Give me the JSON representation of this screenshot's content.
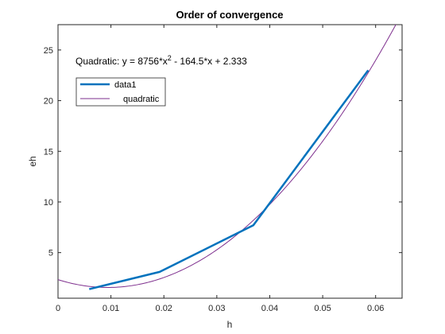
{
  "chart_data": {
    "type": "line",
    "title": "Order of convergence",
    "xlabel": "h",
    "ylabel": "eh",
    "xlim": [
      0,
      0.065
    ],
    "ylim": [
      0.5,
      27.5
    ],
    "xticks": [
      0,
      0.01,
      0.02,
      0.03,
      0.04,
      0.05,
      0.06
    ],
    "xtick_labels": [
      "0",
      "0.01",
      "0.02",
      "0.03",
      "0.04",
      "0.05",
      "0.06"
    ],
    "yticks": [
      5,
      10,
      15,
      20,
      25
    ],
    "ytick_labels": [
      "5",
      "10",
      "15",
      "20",
      "25"
    ],
    "grid": false,
    "legend_position": "top-left",
    "series": [
      {
        "name": "data1",
        "style": "line",
        "color": "#0072BD",
        "x": [
          0.0059,
          0.0192,
          0.0369,
          0.0586
        ],
        "y": [
          1.4,
          3.1,
          7.7,
          23.0
        ]
      },
      {
        "name": "quadratic",
        "style": "fit",
        "color": "#7E2F8E",
        "coefficients": [
          8756,
          -164.5,
          2.333
        ],
        "x_range": [
          0,
          0.065
        ]
      }
    ],
    "annotations": [
      {
        "prefix": "Quadratic:  y = 8756*x",
        "superscript": "2",
        "suffix": " - 164.5*x + 2.333"
      }
    ]
  }
}
